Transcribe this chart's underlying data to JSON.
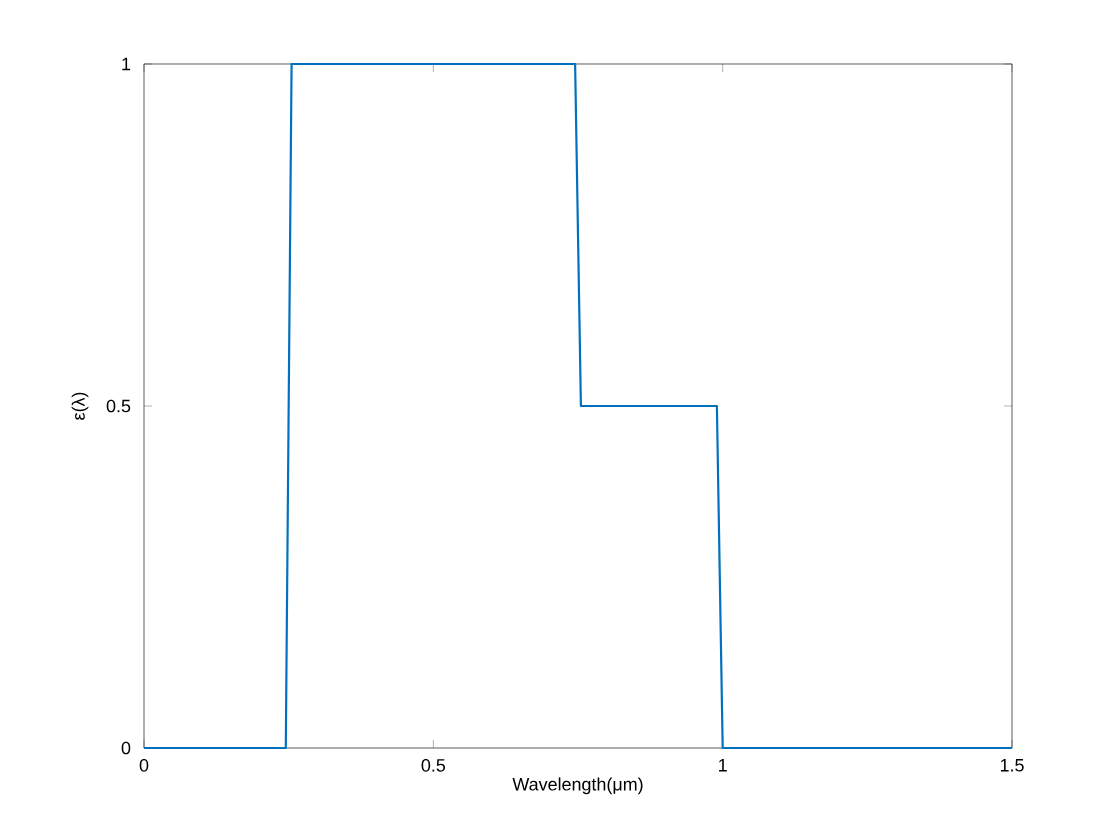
{
  "chart_data": {
    "type": "line",
    "xlabel": "Wavelength(μm)",
    "ylabel": "ε(λ)",
    "x": [
      0,
      0.245,
      0.255,
      0.745,
      0.755,
      0.99,
      1.0,
      1.5
    ],
    "values": [
      0,
      0,
      1,
      1,
      0.5,
      0.5,
      0,
      0
    ],
    "color": "#0072bd",
    "xlim": [
      0,
      1.5
    ],
    "ylim": [
      0,
      1
    ],
    "xticks": [
      0,
      0.5,
      1,
      1.5
    ],
    "yticks": [
      0,
      0.5,
      1
    ]
  }
}
